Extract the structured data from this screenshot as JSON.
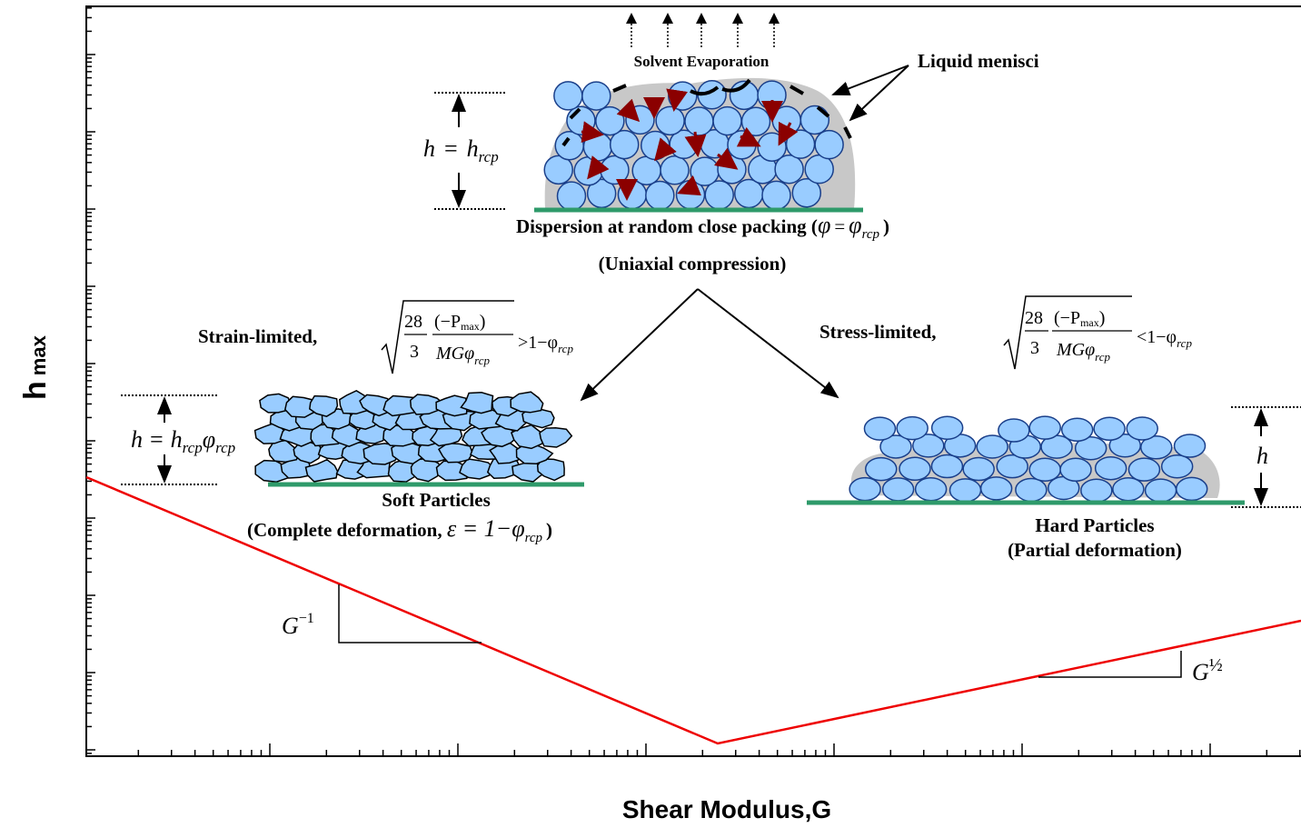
{
  "top": {
    "evaporation": "Solvent Evaporation",
    "menisci": "Liquid menisci",
    "height": {
      "var": "h",
      "eq": "=",
      "base": "h",
      "sub": "rcp"
    },
    "caption": "Dispersion at random close packing (",
    "caption_math": {
      "lhs": "φ",
      "eq": "=",
      "rhs": "φ",
      "sub": "rcp"
    },
    "caption_close": ")",
    "note": "(Uniaxial compression)"
  },
  "strain": {
    "label": "Strain-limited,",
    "coef_num": "28",
    "coef_den": "3",
    "frac_num": "(−P",
    "frac_num_sub": "max",
    "frac_num_close": ")",
    "frac_den": "MGφ",
    "frac_den_sub": "rcp",
    "relation": ">1−φ",
    "relation_sub": "rcp"
  },
  "stress": {
    "label": "Stress-limited,",
    "coef_num": "28",
    "coef_den": "3",
    "frac_num": "(−P",
    "frac_num_sub": "max",
    "frac_num_close": ")",
    "frac_den": "MGφ",
    "frac_den_sub": "rcp",
    "relation": "<1−φ",
    "relation_sub": "rcp"
  },
  "soft": {
    "height": {
      "var": "h",
      "eq": "=",
      "base": "h",
      "sub": "rcp",
      "phi": "φ",
      "phi_sub": "rcp"
    },
    "title": "Soft Particles",
    "note": "(Complete deformation, ",
    "note_math": "ε = 1−φ",
    "note_sub": "rcp",
    "note_close": ")"
  },
  "hard": {
    "height": "h",
    "title": "Hard Particles",
    "note": "(Partial deformation)"
  },
  "slopes": {
    "left": {
      "base": "G",
      "exp": "−1"
    },
    "right": {
      "base": "G",
      "exp": "½"
    }
  },
  "axes": {
    "y_label": "h",
    "y_label_sub": "max",
    "x_label": "Shear Modulus,G"
  }
}
